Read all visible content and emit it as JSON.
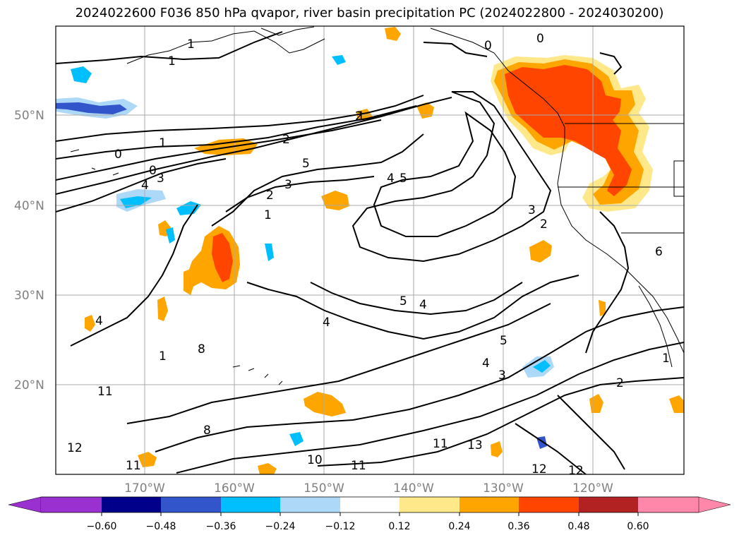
{
  "title": "2024022600 F036 850 hPa qvapor, river basin precipitation PC (2024022800 - 2024030200)",
  "lat_ticks": [
    {
      "label": "50°N",
      "value": 50
    },
    {
      "label": "40°N",
      "value": 40
    },
    {
      "label": "30°N",
      "value": 30
    },
    {
      "label": "20°N",
      "value": 20
    }
  ],
  "lon_ticks": [
    {
      "label": "170°W",
      "value": -170
    },
    {
      "label": "160°W",
      "value": -160
    },
    {
      "label": "150°W",
      "value": -150
    },
    {
      "label": "140°W",
      "value": -140
    },
    {
      "label": "130°W",
      "value": -130
    },
    {
      "label": "120°W",
      "value": -120
    }
  ],
  "colorbar": {
    "colors": [
      "#9b30d0",
      "#00008b",
      "#3355cc",
      "#00bfff",
      "#add8f7",
      "#ffffff",
      "#ffe88a",
      "#ffa500",
      "#ff4500",
      "#b22222",
      "#ff88aa"
    ],
    "labels": [
      "−0.60",
      "−0.48",
      "−0.36",
      "−0.24",
      "−0.12",
      "0.12",
      "0.24",
      "0.36",
      "0.48",
      "0.60"
    ]
  },
  "contour_labels": [
    "1",
    "0",
    "0",
    "1",
    "2",
    "0",
    "1",
    "1",
    "0",
    "3",
    "4",
    "5",
    "2",
    "3",
    "2",
    "1",
    "4",
    "5",
    "3",
    "2",
    "4",
    "5",
    "4",
    "4",
    "5",
    "4",
    "1",
    "8",
    "11",
    "8",
    "12",
    "11",
    "10",
    "11",
    "13",
    "11",
    "12",
    "12",
    "3",
    "2",
    "1",
    "6"
  ]
}
